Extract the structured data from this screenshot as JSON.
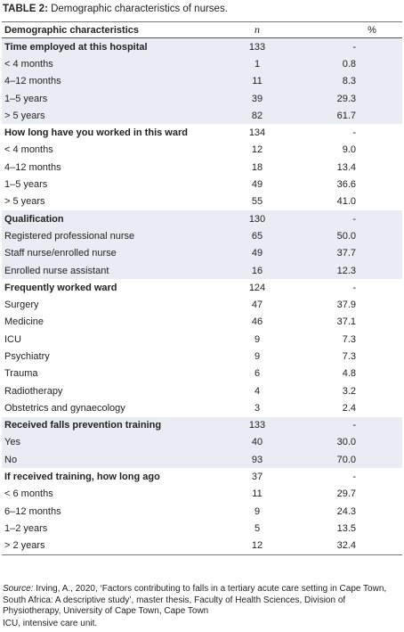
{
  "caption": {
    "label": "TABLE 2:",
    "text": "Demographic characteristics of nurses."
  },
  "table": {
    "header": [
      "Demographic characteristics",
      "n",
      "%"
    ],
    "groups": [
      {
        "title": "Time employed at this hospital",
        "n": "133",
        "pct": "-",
        "rows": [
          [
            "< 4 months",
            "1",
            "0.8"
          ],
          [
            "4–12 months",
            "11",
            "8.3"
          ],
          [
            "1–5 years",
            "39",
            "29.3"
          ],
          [
            "> 5 years",
            "82",
            "61.7"
          ]
        ]
      },
      {
        "title": "How long have you worked in this ward",
        "n": "134",
        "pct": "-",
        "rows": [
          [
            "< 4 months",
            "12",
            "9.0"
          ],
          [
            "4–12 months",
            "18",
            "13.4"
          ],
          [
            "1–5 years",
            "49",
            "36.6"
          ],
          [
            "> 5 years",
            "55",
            "41.0"
          ]
        ]
      },
      {
        "title": "Qualification",
        "n": "130",
        "pct": "-",
        "rows": [
          [
            "Registered professional nurse",
            "65",
            "50.0"
          ],
          [
            "Staff nurse/enrolled nurse",
            "49",
            "37.7"
          ],
          [
            "Enrolled nurse assistant",
            "16",
            "12.3"
          ]
        ]
      },
      {
        "title": "Frequently worked ward",
        "n": "124",
        "pct": "-",
        "rows": [
          [
            "Surgery",
            "47",
            "37.9"
          ],
          [
            "Medicine",
            "46",
            "37.1"
          ],
          [
            "ICU",
            "9",
            "7.3"
          ],
          [
            "Psychiatry",
            "9",
            "7.3"
          ],
          [
            "Trauma",
            "6",
            "4.8"
          ],
          [
            "Radiotherapy",
            "4",
            "3.2"
          ],
          [
            "Obstetrics and gynaecology",
            "3",
            "2.4"
          ]
        ]
      },
      {
        "title": "Received falls prevention training",
        "n": "133",
        "pct": "-",
        "rows": [
          [
            "Yes",
            "40",
            "30.0"
          ],
          [
            "No",
            "93",
            "70.0"
          ]
        ]
      },
      {
        "title": "If received training, how long ago",
        "n": "37",
        "pct": "-",
        "rows": [
          [
            "< 6 months",
            "11",
            "29.7"
          ],
          [
            "6–12 months",
            "9",
            "24.3"
          ],
          [
            "1–2 years",
            "5",
            "13.5"
          ],
          [
            "> 2 years",
            "12",
            "32.4"
          ]
        ]
      }
    ]
  },
  "source": {
    "label": "Source:",
    "text": "Irving, A., 2020, ‘Factors contributing to falls in a tertiary acute care setting in Cape Town, South Africa: A descriptive study’, master thesis, Faculty of Health Sciences, Division of Physiotherapy, University of Cape Town, Cape Town"
  },
  "footnote": "ICU, intensive care unit."
}
